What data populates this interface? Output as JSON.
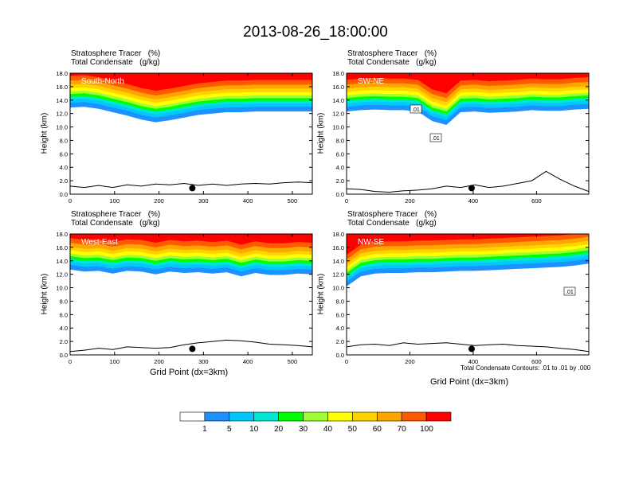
{
  "title": "2013-08-26_18:00:00",
  "panels_common": {
    "tracer_label": "Stratosphere Tracer   (%)",
    "condensate_label": "Total Condensate   (g/kg)",
    "ylabel": "Height (km)",
    "yticks": [
      "0.0",
      "2.0",
      "4.0",
      "6.0",
      "8.0",
      "10.0",
      "12.0",
      "14.0",
      "16.0",
      "18.0"
    ]
  },
  "xlabel": "Grid Point (dx=3km)",
  "contour_note": "Total Condensate Contours: .01 to .01 by .000",
  "contour_tags": [
    ".01",
    ".01",
    ".01"
  ],
  "colorbar": {
    "colors": [
      "#ffffff",
      "#1e90ff",
      "#00c8ff",
      "#00e6d2",
      "#00ff00",
      "#a0ff32",
      "#ffff00",
      "#ffd200",
      "#ffa500",
      "#ff5a00",
      "#ff0000"
    ],
    "labels": [
      "1",
      "5",
      "10",
      "20",
      "30",
      "40",
      "50",
      "60",
      "70",
      "100"
    ]
  },
  "chart_data": [
    {
      "type": "heatmap",
      "name": "South-North",
      "xlim": [
        0,
        545
      ],
      "ylim": [
        0,
        18
      ],
      "xticks": [
        0,
        100,
        200,
        300,
        400,
        500
      ],
      "tropopause_km": [
        13.2,
        13.3,
        13.0,
        12.5,
        12.0,
        11.4,
        11.0,
        11.3,
        11.7,
        12.1,
        12.3,
        12.5,
        12.5,
        12.6,
        12.6,
        12.6,
        12.6,
        12.6
      ],
      "terrain_km": [
        1.2,
        1.0,
        1.3,
        1.0,
        1.4,
        1.2,
        1.5,
        1.4,
        1.6,
        1.3,
        1.5,
        1.3,
        1.5,
        1.6,
        1.5,
        1.7,
        1.8,
        1.7
      ],
      "marker_x": 275
    },
    {
      "type": "heatmap",
      "name": "SW-NE",
      "xlim": [
        0,
        765
      ],
      "ylim": [
        0,
        18
      ],
      "xticks": [
        0,
        200,
        400,
        600
      ],
      "tropopause_km": [
        12.6,
        12.8,
        12.9,
        12.8,
        12.8,
        12.6,
        11.2,
        10.6,
        12.5,
        12.6,
        12.4,
        12.5,
        12.6,
        12.8,
        12.7,
        12.7,
        12.9,
        13.0
      ],
      "terrain_km": [
        0.8,
        0.7,
        0.4,
        0.3,
        0.5,
        0.6,
        0.8,
        1.2,
        1.0,
        1.4,
        1.0,
        1.2,
        1.6,
        2.0,
        3.4,
        2.2,
        1.2,
        0.4
      ],
      "marker_x": 395
    },
    {
      "type": "heatmap",
      "name": "West-East",
      "xlim": [
        0,
        545
      ],
      "ylim": [
        0,
        18
      ],
      "xticks": [
        0,
        100,
        200,
        300,
        400,
        500
      ],
      "tropopause_km": [
        13.0,
        12.7,
        12.8,
        12.4,
        12.8,
        12.7,
        12.3,
        12.7,
        12.5,
        12.6,
        12.4,
        12.6,
        12.0,
        12.5,
        12.2,
        12.2,
        12.4,
        12.3
      ],
      "terrain_km": [
        0.5,
        0.7,
        1.0,
        0.8,
        1.2,
        1.1,
        1.0,
        1.1,
        1.5,
        1.8,
        2.0,
        2.2,
        2.1,
        1.9,
        1.6,
        1.5,
        1.4,
        1.2
      ],
      "marker_x": 275
    },
    {
      "type": "heatmap",
      "name": "NW-SE",
      "xlim": [
        0,
        765
      ],
      "ylim": [
        0,
        18
      ],
      "xticks": [
        0,
        200,
        400,
        600
      ],
      "tropopause_km": [
        10.5,
        12.0,
        12.4,
        12.5,
        12.5,
        12.6,
        12.6,
        12.7,
        12.8,
        12.8,
        12.9,
        13.0,
        13.1,
        13.2,
        13.3,
        13.4,
        13.6,
        13.9
      ],
      "terrain_km": [
        1.2,
        1.5,
        1.6,
        1.4,
        1.8,
        1.6,
        1.7,
        1.8,
        1.6,
        1.4,
        1.5,
        1.6,
        1.4,
        1.3,
        1.2,
        1.0,
        0.8,
        0.5
      ],
      "marker_x": 395
    }
  ]
}
